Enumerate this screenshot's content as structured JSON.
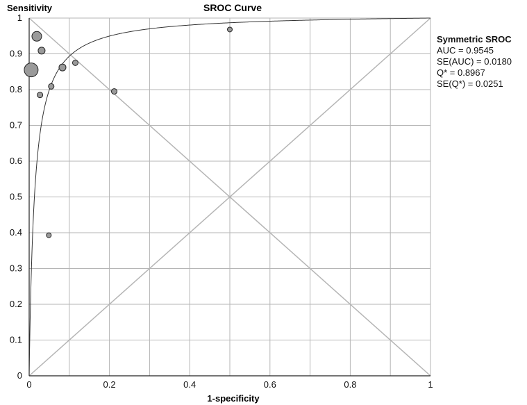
{
  "chart_data": {
    "type": "scatter",
    "title": "SROC Curve",
    "xlabel": "1-specificity",
    "ylabel": "Sensitivity",
    "xlim": [
      0,
      1
    ],
    "ylim": [
      0,
      1
    ],
    "grid": true,
    "xticks": [
      "0",
      "0.2",
      "0.4",
      "0.6",
      "0.8",
      "1"
    ],
    "yticks": [
      "0",
      "0.1",
      "0.2",
      "0.3",
      "0.4",
      "0.5",
      "0.6",
      "0.7",
      "0.8",
      "0.9",
      "1"
    ],
    "points": [
      {
        "x": 0.005,
        "y": 0.855,
        "size": 10
      },
      {
        "x": 0.019,
        "y": 0.949,
        "size": 7
      },
      {
        "x": 0.031,
        "y": 0.909,
        "size": 5
      },
      {
        "x": 0.027,
        "y": 0.785,
        "size": 4
      },
      {
        "x": 0.055,
        "y": 0.809,
        "size": 4
      },
      {
        "x": 0.083,
        "y": 0.862,
        "size": 5
      },
      {
        "x": 0.115,
        "y": 0.875,
        "size": 4
      },
      {
        "x": 0.212,
        "y": 0.795,
        "size": 4
      },
      {
        "x": 0.049,
        "y": 0.393,
        "size": 3.5
      },
      {
        "x": 0.5,
        "y": 0.968,
        "size": 3.5
      }
    ],
    "curve": {
      "type": "symmetric_sroc",
      "Q": 0.8967
    },
    "reference_lines": [
      "diagonal y=x",
      "anti-diagonal y=1-x"
    ],
    "stats": {
      "heading": "Symmetric SROC",
      "auc": "AUC = 0.9545",
      "se_auc": "SE(AUC) = 0.0180",
      "q": "Q* = 0.8967",
      "se_q": "SE(Q*) = 0.0251"
    }
  }
}
